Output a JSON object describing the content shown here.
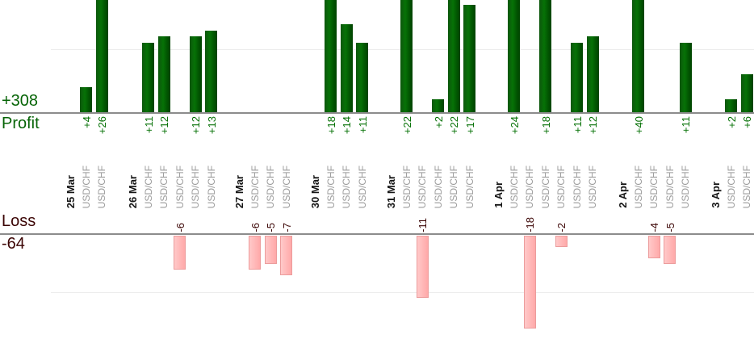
{
  "chart_data": {
    "type": "bar",
    "profit": {
      "label": "Profit",
      "total": "+308"
    },
    "loss": {
      "label": "Loss",
      "total": "-64"
    },
    "groups": [
      {
        "date": "25 Mar",
        "trades": [
          {
            "symbol": "USD/CHF",
            "value": 4
          },
          {
            "symbol": "USD/CHF",
            "value": 26
          }
        ]
      },
      {
        "date": "26 Mar",
        "trades": [
          {
            "symbol": "USD/CHF",
            "value": 11
          },
          {
            "symbol": "USD/CHF",
            "value": 12
          },
          {
            "symbol": "USD/CHF",
            "value": -6
          },
          {
            "symbol": "USD/CHF",
            "value": 12
          },
          {
            "symbol": "USD/CHF",
            "value": 13
          }
        ]
      },
      {
        "date": "27 Mar",
        "trades": [
          {
            "symbol": "USD/CHF",
            "value": -6
          },
          {
            "symbol": "USD/CHF",
            "value": -5
          },
          {
            "symbol": "USD/CHF",
            "value": -7
          }
        ]
      },
      {
        "date": "30 Mar",
        "trades": [
          {
            "symbol": "USD/CHF",
            "value": 18
          },
          {
            "symbol": "USD/CHF",
            "value": 14
          },
          {
            "symbol": "USD/CHF",
            "value": 11
          }
        ]
      },
      {
        "date": "31 Mar",
        "trades": [
          {
            "symbol": "USD/CHF",
            "value": 22
          },
          {
            "symbol": "USD/CHF",
            "value": -11
          },
          {
            "symbol": "USD/CHF",
            "value": 2
          },
          {
            "symbol": "USD/CHF",
            "value": 22
          },
          {
            "symbol": "USD/CHF",
            "value": 17
          }
        ]
      },
      {
        "date": "1 Apr",
        "trades": [
          {
            "symbol": "USD/CHF",
            "value": 24
          },
          {
            "symbol": "USD/CHF",
            "value": -18
          },
          {
            "symbol": "USD/CHF",
            "value": 18
          },
          {
            "symbol": "USD/CHF",
            "value": -2
          },
          {
            "symbol": "USD/CHF",
            "value": 11
          },
          {
            "symbol": "USD/CHF",
            "value": 12
          }
        ]
      },
      {
        "date": "2 Apr",
        "trades": [
          {
            "symbol": "USD/CHF",
            "value": 40
          },
          {
            "symbol": "USD/CHF",
            "value": -4
          },
          {
            "symbol": "USD/CHF",
            "value": -5
          },
          {
            "symbol": "USD/CHF",
            "value": 11
          }
        ]
      },
      {
        "date": "3 Apr",
        "trades": [
          {
            "symbol": "USD/CHF",
            "value": 2
          },
          {
            "symbol": "USD/CHF",
            "value": 6
          }
        ]
      }
    ],
    "layout": {
      "grid": "faint horizontal gridlines",
      "profit_gridline_value": 10,
      "loss_gridline_value": -10,
      "profit_bars_clipped_above": 18,
      "legend": "none"
    },
    "colors": {
      "profit_bar": "#067206",
      "profit_text": "#066406",
      "loss_bar": "#ffb3b3",
      "loss_border": "#ec9c9c",
      "loss_text": "#3b0404",
      "symbol_text": "#9b9b9b",
      "date_text": "#161616",
      "axis": "#8c8c8c",
      "gridline": "#ececec"
    }
  }
}
